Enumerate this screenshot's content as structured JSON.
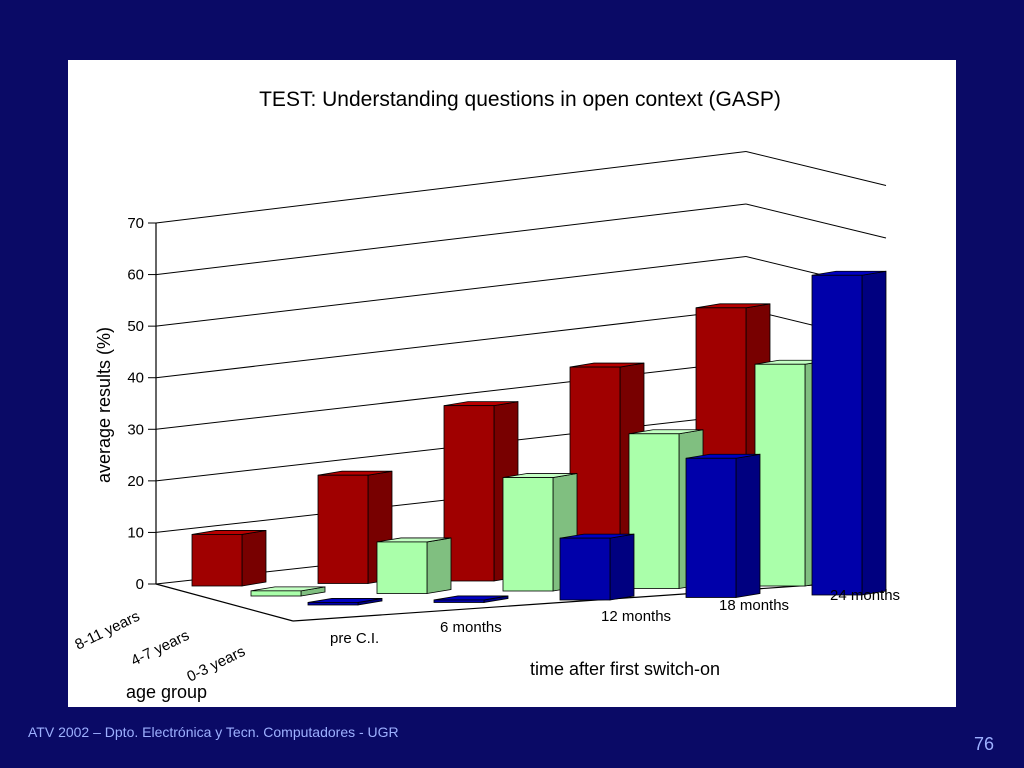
{
  "slide": {
    "footer": "ATV 2002 – Dpto. Electrónica y Tecn. Computadores - UGR",
    "page_number": "76",
    "background_color": "#0a0a66"
  },
  "chart_data": {
    "type": "bar",
    "subtype": "3d-grouped",
    "title": "TEST: Understanding questions in open context (GASP)",
    "xlabel": "time after first switch-on",
    "ylabel": "average results (%)",
    "depth_label": "age group",
    "categories": [
      "pre C.I.",
      "6 months",
      "12 months",
      "18 months",
      "24 months"
    ],
    "yticks": [
      "0",
      "10",
      "20",
      "30",
      "40",
      "50",
      "60",
      "70"
    ],
    "ylim": [
      0,
      70
    ],
    "grid": true,
    "series": [
      {
        "name": "8-11 years",
        "color": "#a00000",
        "values": [
          10,
          21,
          34,
          41,
          52
        ]
      },
      {
        "name": "4-7 years",
        "color": "#aaffaa",
        "values": [
          1,
          10,
          22,
          30,
          43
        ]
      },
      {
        "name": "0-3 years",
        "color": "#0000aa",
        "values": [
          0.5,
          0.5,
          12,
          27,
          62
        ]
      }
    ]
  }
}
